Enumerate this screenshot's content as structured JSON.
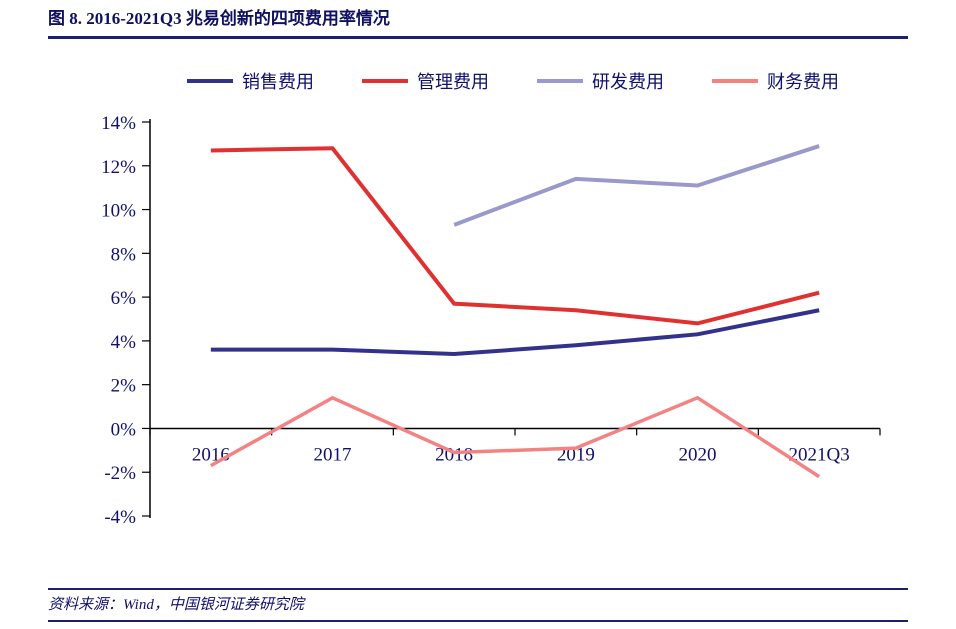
{
  "header": {
    "title": "图 8. 2016-2021Q3 兆易创新的四项费用率情况"
  },
  "footer": {
    "source": "资料来源：Wind，中国银河证券研究院"
  },
  "colors": {
    "title_text": "#101060",
    "rule": "#1E1E6E",
    "axis": "#000000",
    "tick_label": "#10106B"
  },
  "chart_data": {
    "type": "line",
    "title": "图 8. 2016-2021Q3 兆易创新的四项费用率情况",
    "categories": [
      "2016",
      "2017",
      "2018",
      "2019",
      "2020",
      "2021Q3"
    ],
    "series": [
      {
        "key": "sales_expense",
        "name": "销售费用",
        "color": "#32328C",
        "width": 4,
        "values": [
          3.6,
          3.6,
          3.4,
          3.8,
          4.3,
          5.4
        ]
      },
      {
        "key": "admin_expense",
        "name": "管理费用",
        "color": "#E03131",
        "width": 4,
        "values": [
          12.7,
          12.8,
          5.7,
          5.4,
          4.8,
          6.2
        ]
      },
      {
        "key": "rd_expense",
        "name": "研发费用",
        "color": "#9A99CC",
        "width": 4,
        "values": [
          null,
          null,
          9.3,
          11.4,
          11.1,
          12.9
        ]
      },
      {
        "key": "finance_expense",
        "name": "财务费用",
        "color": "#F48282",
        "width": 3.5,
        "values": [
          -1.7,
          1.4,
          -1.1,
          -0.9,
          1.4,
          -2.2
        ]
      }
    ],
    "ylim": [
      -4,
      14
    ],
    "yticks": [
      14,
      12,
      10,
      8,
      6,
      4,
      2,
      0,
      -2,
      -4
    ],
    "ytick_suffix": "%",
    "grid": false,
    "legend_position": "top",
    "xlabel": "",
    "ylabel": ""
  }
}
